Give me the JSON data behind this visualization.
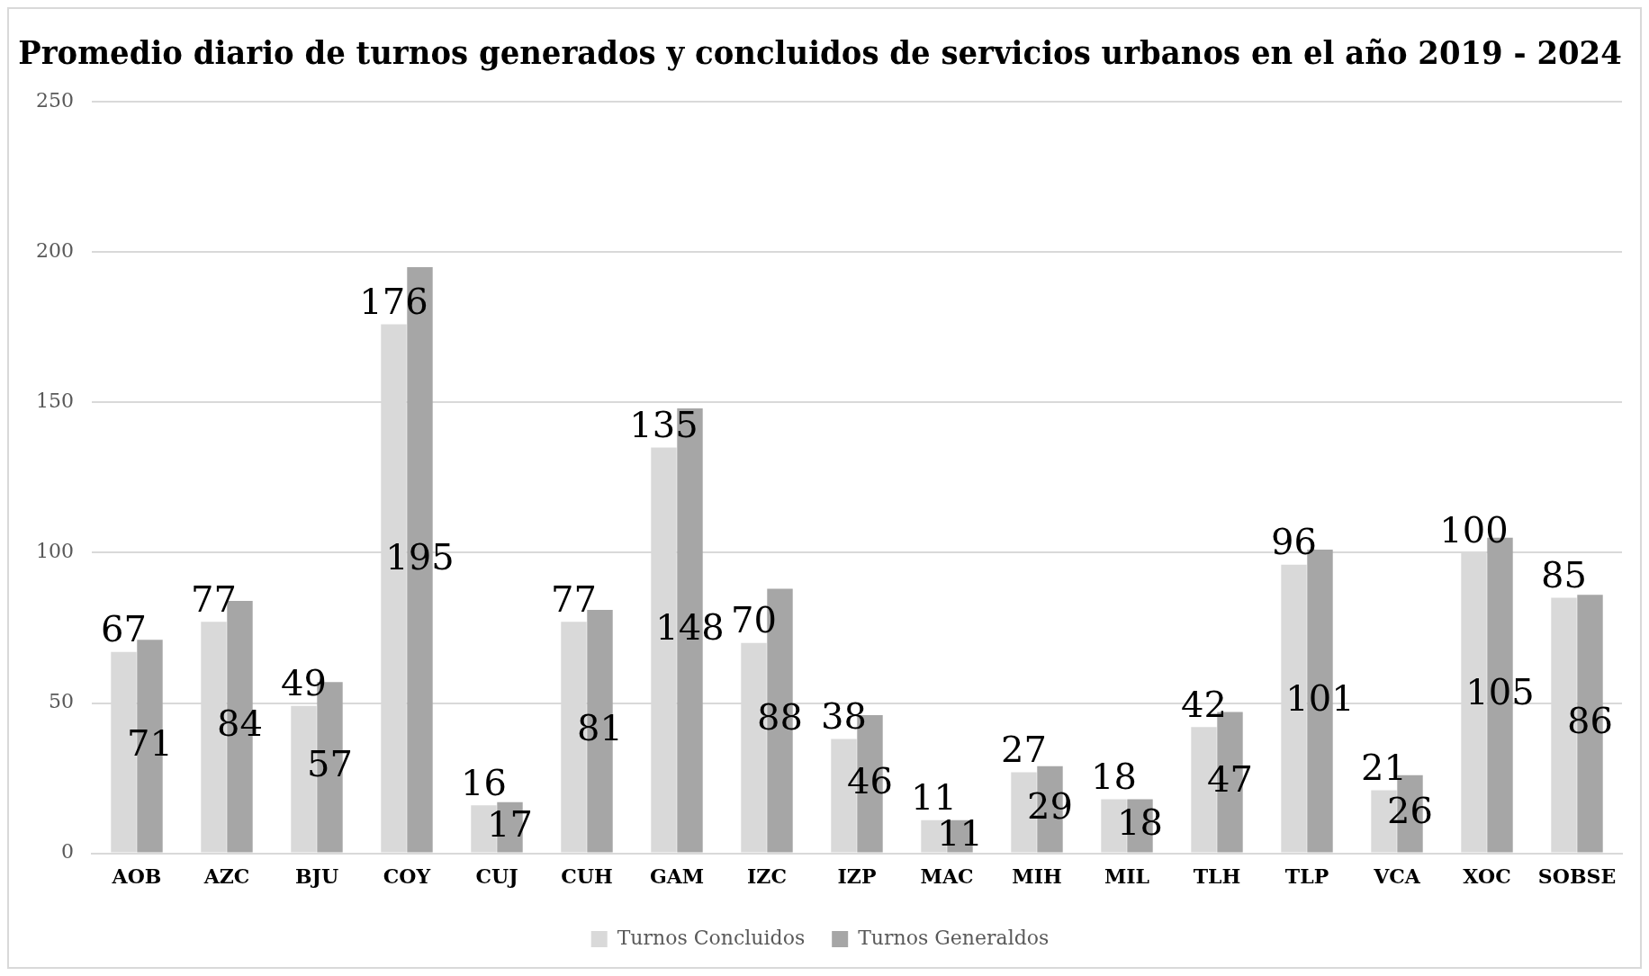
{
  "chart_data": {
    "type": "bar",
    "title": "Promedio diario de turnos generados y concluidos de servicios urbanos en el año 2019 - 2024",
    "categories": [
      "AOB",
      "AZC",
      "BJU",
      "COY",
      "CUJ",
      "CUH",
      "GAM",
      "IZC",
      "IZP",
      "MAC",
      "MIH",
      "MIL",
      "TLH",
      "TLP",
      "VCA",
      "XOC",
      "SOBSE"
    ],
    "series": [
      {
        "name": "Turnos Concluidos",
        "color": "#d9d9d9",
        "values": [
          67,
          77,
          49,
          176,
          16,
          77,
          135,
          70,
          38,
          11,
          27,
          18,
          42,
          96,
          21,
          100,
          85
        ]
      },
      {
        "name": "Turnos Generaldos",
        "color": "#a6a6a6",
        "values": [
          71,
          84,
          57,
          195,
          17,
          81,
          148,
          88,
          46,
          11,
          29,
          18,
          47,
          101,
          26,
          105,
          86
        ]
      }
    ],
    "ylim": [
      0,
      250
    ],
    "yticks": [
      0,
      50,
      100,
      150,
      200,
      250
    ],
    "grid": "y",
    "legend": "bottom",
    "data_labels": true
  }
}
